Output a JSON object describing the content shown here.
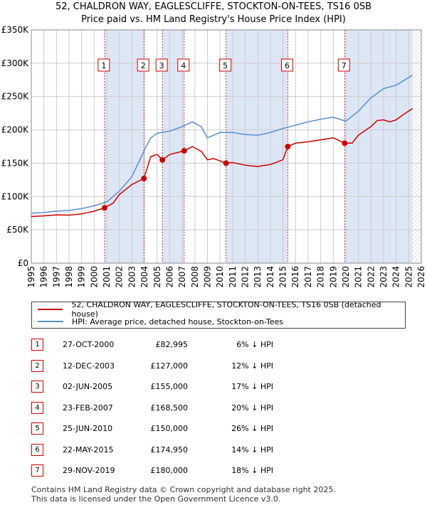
{
  "chart_data": {
    "type": "line",
    "title": "52, CHALDRON WAY, EAGLESCLIFFE, STOCKTON-ON-TEES, TS16 0SB",
    "subtitle": "Price paid vs. HM Land Registry's House Price Index (HPI)",
    "xlim": [
      1995,
      2026
    ],
    "ylim": [
      0,
      350000
    ],
    "x_ticks": [
      1995,
      1996,
      1997,
      1998,
      1999,
      2000,
      2001,
      2002,
      2003,
      2004,
      2005,
      2006,
      2007,
      2008,
      2009,
      2010,
      2011,
      2012,
      2013,
      2014,
      2015,
      2016,
      2017,
      2018,
      2019,
      2020,
      2021,
      2022,
      2023,
      2024,
      2025,
      2026
    ],
    "y_ticks": [
      0,
      50000,
      100000,
      150000,
      200000,
      250000,
      300000,
      350000
    ],
    "y_tick_labels": [
      "£0",
      "£50K",
      "£100K",
      "£150K",
      "£200K",
      "£250K",
      "£300K",
      "£350K"
    ],
    "grid": true,
    "hatch_after": 2025.3,
    "series": [
      {
        "name": "52, CHALDRON WAY, EAGLESCLIFFE, STOCKTON-ON-TEES, TS16 0SB (detached house)",
        "color": "#cc0000",
        "x": [
          1995,
          1996,
          1997,
          1998,
          1999,
          2000,
          2000.82,
          2001.5,
          2002,
          2003,
          2003.95,
          2004.5,
          2005,
          2005.42,
          2006,
          2007.15,
          2007.8,
          2008.5,
          2009,
          2009.5,
          2010.48,
          2011,
          2012,
          2013,
          2014,
          2015,
          2015.39,
          2016,
          2017,
          2018,
          2019,
          2019.91,
          2020.5,
          2021,
          2022,
          2022.5,
          2023,
          2023.5,
          2024,
          2024.5,
          2025.3
        ],
        "values": [
          70000,
          71000,
          72500,
          72000,
          74000,
          78000,
          82995,
          90000,
          103000,
          118000,
          127000,
          160000,
          163000,
          155000,
          163000,
          168500,
          175000,
          168000,
          155000,
          157000,
          150000,
          151000,
          147000,
          145000,
          148000,
          155000,
          174950,
          180000,
          182000,
          185000,
          188000,
          180000,
          180000,
          192000,
          205000,
          214000,
          215000,
          212000,
          215000,
          222000,
          232000
        ]
      },
      {
        "name": "HPI: Average price, detached house, Stockton-on-Tees",
        "color": "#5b8fd0",
        "x": [
          1995,
          1996,
          1997,
          1998,
          1999,
          2000,
          2001,
          2002,
          2003,
          2004,
          2004.5,
          2005,
          2006,
          2007,
          2007.8,
          2008.5,
          2009,
          2010,
          2011,
          2012,
          2013,
          2014,
          2015,
          2016,
          2017,
          2018,
          2019,
          2020,
          2021,
          2022,
          2023,
          2024,
          2025.3
        ],
        "values": [
          75000,
          76000,
          78000,
          79000,
          82000,
          86000,
          92000,
          108000,
          130000,
          170000,
          188000,
          195000,
          198000,
          205000,
          212000,
          205000,
          188000,
          196000,
          196000,
          193000,
          192000,
          196000,
          202000,
          207000,
          212000,
          216000,
          219000,
          213000,
          228000,
          248000,
          262000,
          267000,
          282000
        ]
      }
    ],
    "markers": [
      {
        "label": "1",
        "x": 2000.82,
        "y": 82995
      },
      {
        "label": "2",
        "x": 2003.95,
        "y": 127000
      },
      {
        "label": "3",
        "x": 2005.42,
        "y": 155000
      },
      {
        "label": "4",
        "x": 2007.15,
        "y": 168500
      },
      {
        "label": "5",
        "x": 2010.48,
        "y": 150000
      },
      {
        "label": "6",
        "x": 2015.39,
        "y": 174950
      },
      {
        "label": "7",
        "x": 2019.91,
        "y": 180000
      }
    ]
  },
  "legend": {
    "property": "52, CHALDRON WAY, EAGLESCLIFFE, STOCKTON-ON-TEES, TS16 0SB (detached house)",
    "hpi": "HPI: Average price, detached house, Stockton-on-Tees"
  },
  "transactions": [
    {
      "num": "1",
      "date": "27-OCT-2000",
      "price": "£82,995",
      "hpi": "6% ↓ HPI"
    },
    {
      "num": "2",
      "date": "12-DEC-2003",
      "price": "£127,000",
      "hpi": "12% ↓ HPI"
    },
    {
      "num": "3",
      "date": "02-JUN-2005",
      "price": "£155,000",
      "hpi": "17% ↓ HPI"
    },
    {
      "num": "4",
      "date": "23-FEB-2007",
      "price": "£168,500",
      "hpi": "20% ↓ HPI"
    },
    {
      "num": "5",
      "date": "25-JUN-2010",
      "price": "£150,000",
      "hpi": "26% ↓ HPI"
    },
    {
      "num": "6",
      "date": "22-MAY-2015",
      "price": "£174,950",
      "hpi": "14% ↓ HPI"
    },
    {
      "num": "7",
      "date": "29-NOV-2019",
      "price": "£180,000",
      "hpi": "18% ↓ HPI"
    }
  ],
  "footer": {
    "line1": "Contains HM Land Registry data © Crown copyright and database right 2025.",
    "line2": "This data is licensed under the Open Government Licence v3.0."
  },
  "colors": {
    "property_line": "#cc0000",
    "hpi_line": "#5b8fd0",
    "shade": "#dde6f5",
    "grid": "#cccccc",
    "badge_border": "#cc0000"
  }
}
